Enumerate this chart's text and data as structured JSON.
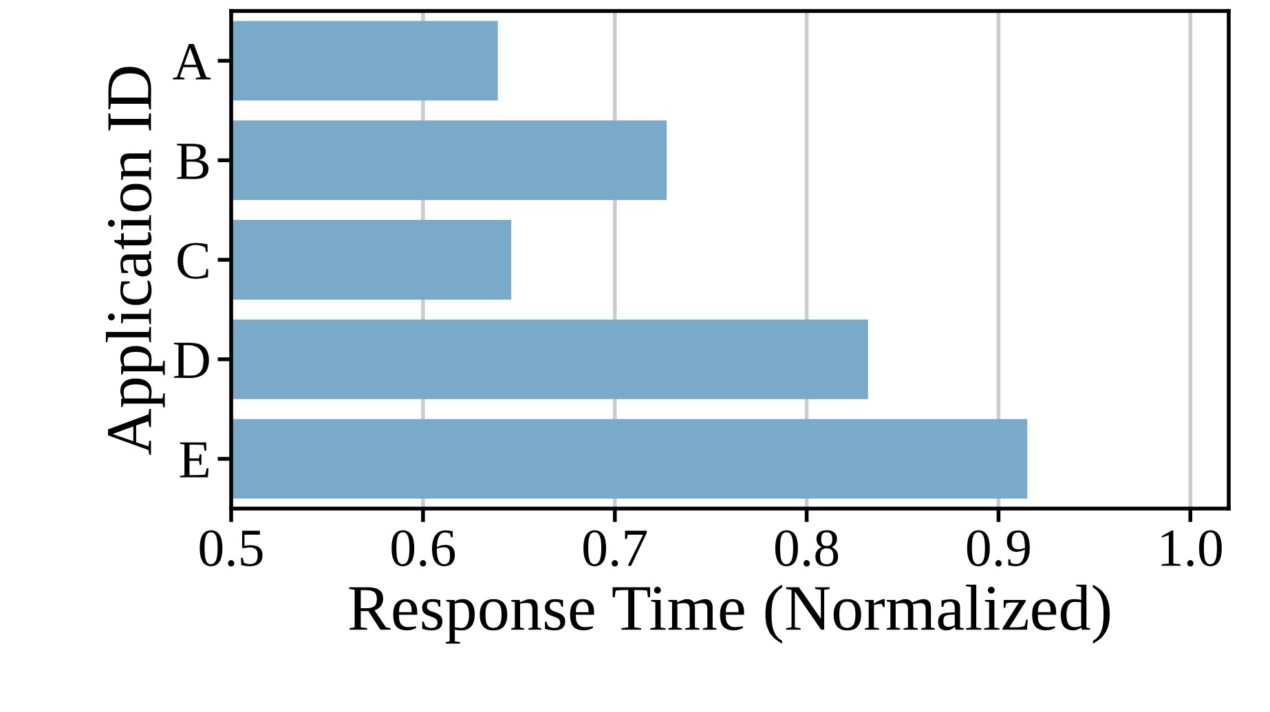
{
  "chart_data": {
    "type": "bar",
    "orientation": "horizontal",
    "xlabel": "Response Time (Normalized)",
    "ylabel": "Application ID",
    "categories": [
      "A",
      "B",
      "C",
      "D",
      "E"
    ],
    "values": [
      0.639,
      0.727,
      0.646,
      0.832,
      0.915
    ],
    "color": "#79aac9",
    "xlim": [
      0.5,
      1.02
    ],
    "xticks": [
      {
        "value": 0.5,
        "label": "0.5"
      },
      {
        "value": 0.6,
        "label": "0.6"
      },
      {
        "value": 0.7,
        "label": "0.7"
      },
      {
        "value": 0.8,
        "label": "0.8"
      },
      {
        "value": 0.9,
        "label": "0.9"
      },
      {
        "value": 1.0,
        "label": "1.0"
      }
    ],
    "grid": "x"
  }
}
